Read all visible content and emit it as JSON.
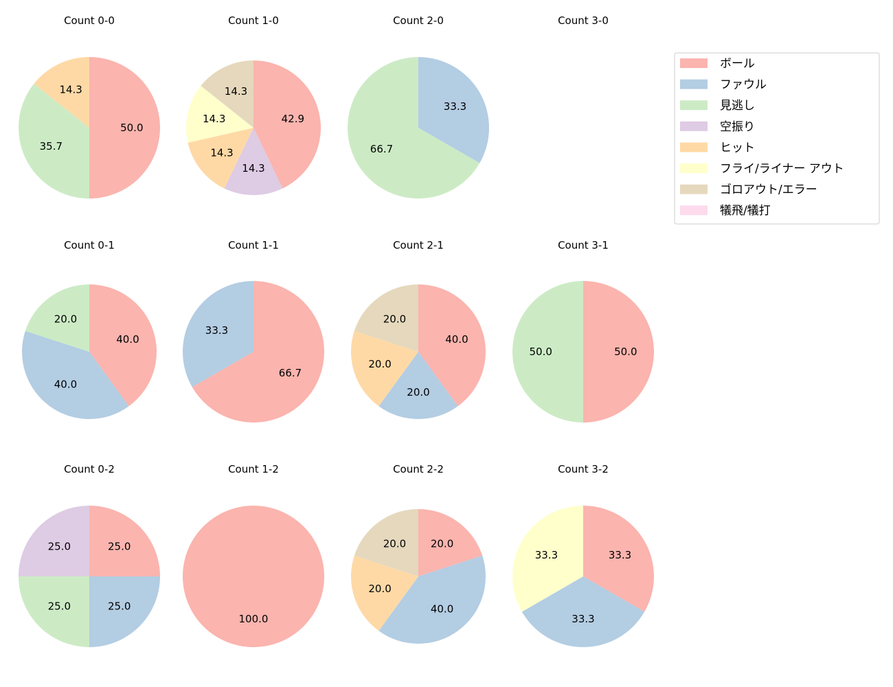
{
  "chart_data": {
    "type": "pie",
    "categories": [
      "ボール",
      "ファウル",
      "見逃し",
      "空振り",
      "ヒット",
      "フライ/ライナー アウト",
      "ゴロアウト/エラー",
      "犠飛/犠打"
    ],
    "colors": [
      "#fbb4ae",
      "#b3cde3",
      "#ccebc5",
      "#decbe4",
      "#fed9a6",
      "#ffffcc",
      "#e5d8bd",
      "#fddaec"
    ],
    "legend_position": "right",
    "pies": [
      {
        "title": "Count 0-0",
        "values": [
          50.0,
          0,
          35.7,
          0,
          14.3,
          0,
          0,
          0
        ]
      },
      {
        "title": "Count 1-0",
        "values": [
          42.9,
          0,
          0,
          14.3,
          14.3,
          14.3,
          14.3,
          0
        ]
      },
      {
        "title": "Count 2-0",
        "values": [
          0,
          33.3,
          66.7,
          0,
          0,
          0,
          0,
          0
        ]
      },
      {
        "title": "Count 3-0",
        "values": []
      },
      {
        "title": "Count 0-1",
        "values": [
          40.0,
          40.0,
          20.0,
          0,
          0,
          0,
          0,
          0
        ]
      },
      {
        "title": "Count 1-1",
        "values": [
          66.7,
          33.3,
          0,
          0,
          0,
          0,
          0,
          0
        ]
      },
      {
        "title": "Count 2-1",
        "values": [
          40.0,
          20.0,
          0,
          0,
          20.0,
          0,
          20.0,
          0
        ]
      },
      {
        "title": "Count 3-1",
        "values": [
          50.0,
          0,
          50.0,
          0,
          0,
          0,
          0,
          0
        ]
      },
      {
        "title": "Count 0-2",
        "values": [
          25.0,
          25.0,
          25.0,
          25.0,
          0,
          0,
          0,
          0
        ]
      },
      {
        "title": "Count 1-2",
        "values": [
          100.0,
          0,
          0,
          0,
          0,
          0,
          0,
          0
        ]
      },
      {
        "title": "Count 2-2",
        "values": [
          20.0,
          40.0,
          0,
          0,
          20.0,
          0,
          20.0,
          0
        ]
      },
      {
        "title": "Count 3-2",
        "values": [
          33.3,
          33.3,
          0,
          0,
          0,
          33.3,
          0,
          0
        ]
      }
    ]
  }
}
